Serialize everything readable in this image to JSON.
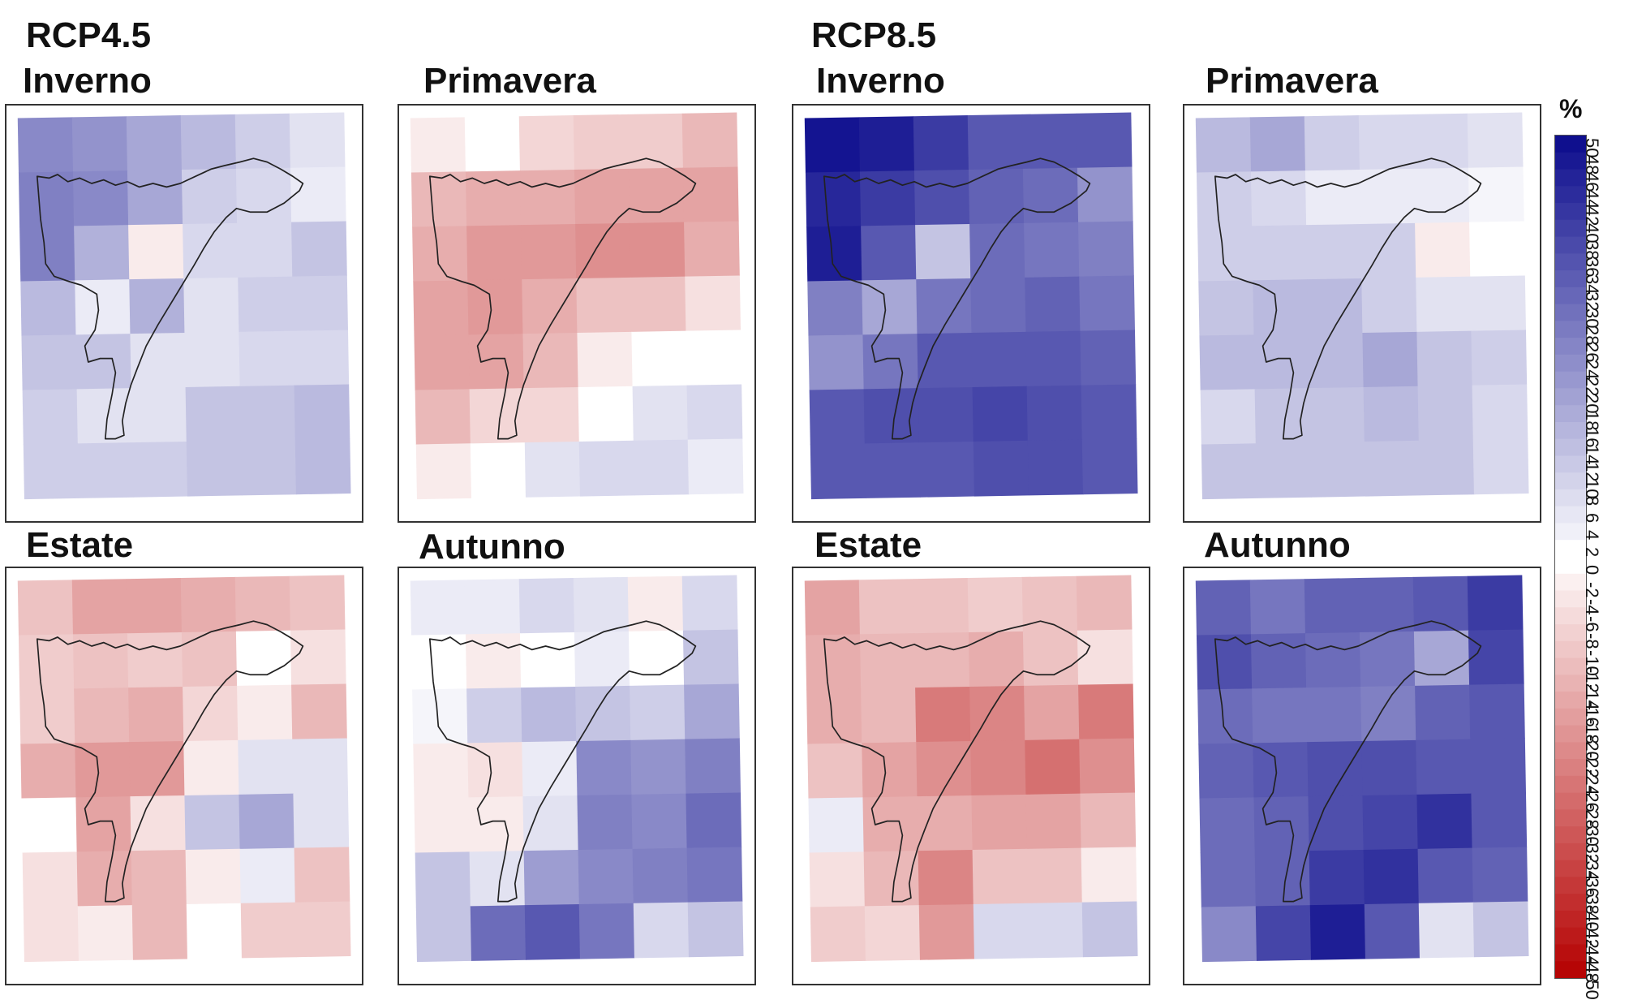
{
  "scenarios": [
    "RCP4.5",
    "RCP8.5"
  ],
  "seasons": [
    "Inverno",
    "Primavera",
    "Estate",
    "Autunno"
  ],
  "legend": {
    "unit": "%",
    "ticks": [
      "50",
      "48",
      "46",
      "44",
      "42",
      "40",
      "38",
      "36",
      "34",
      "32",
      "30",
      "28",
      "26",
      "24",
      "22",
      "20",
      "18",
      "16",
      "14",
      "12",
      "10",
      "8",
      "6",
      "4",
      "2",
      "0",
      "-2",
      "-4",
      "-6",
      "-8",
      "-10",
      "-12",
      "-14",
      "-16",
      "-18",
      "-20",
      "-22",
      "-24",
      "-26",
      "-28",
      "-30",
      "-32",
      "-34",
      "-36",
      "-38",
      "-40",
      "-42",
      "-44",
      "-48",
      "-50"
    ],
    "range": [
      -50,
      50
    ],
    "positive_color": "#0a0a8c",
    "negative_color": "#b40000",
    "neutral_color": "#ffffff"
  },
  "maps": [
    {
      "scenario": "RCP4.5",
      "season": "Inverno",
      "grid": [
        [
          24,
          22,
          18,
          14,
          10,
          6
        ],
        [
          26,
          24,
          18,
          10,
          8,
          4
        ],
        [
          26,
          16,
          -4,
          8,
          8,
          12
        ],
        [
          14,
          4,
          16,
          6,
          10,
          10
        ],
        [
          12,
          12,
          6,
          6,
          8,
          8
        ],
        [
          10,
          6,
          6,
          12,
          12,
          14
        ],
        [
          10,
          10,
          10,
          12,
          12,
          14
        ]
      ]
    },
    {
      "scenario": "RCP4.5",
      "season": "Primavera",
      "grid": [
        [
          -4,
          0,
          -8,
          -10,
          -10,
          -14
        ],
        [
          -14,
          -16,
          -16,
          -18,
          -18,
          -18
        ],
        [
          -16,
          -20,
          -20,
          -22,
          -22,
          -16
        ],
        [
          -18,
          -20,
          -16,
          -12,
          -12,
          -6
        ],
        [
          -18,
          -18,
          -14,
          -4,
          0,
          0
        ],
        [
          -14,
          -8,
          -8,
          0,
          6,
          8
        ],
        [
          -4,
          0,
          6,
          8,
          8,
          4
        ]
      ]
    },
    {
      "scenario": "RCP8.5",
      "season": "Inverno",
      "grid": [
        [
          48,
          46,
          40,
          34,
          34,
          34
        ],
        [
          44,
          40,
          36,
          32,
          30,
          22
        ],
        [
          46,
          34,
          12,
          30,
          28,
          26
        ],
        [
          26,
          18,
          28,
          30,
          32,
          28
        ],
        [
          22,
          28,
          34,
          34,
          34,
          32
        ],
        [
          34,
          36,
          36,
          38,
          36,
          34
        ],
        [
          34,
          34,
          34,
          36,
          36,
          34
        ]
      ]
    },
    {
      "scenario": "RCP8.5",
      "season": "Primavera",
      "grid": [
        [
          14,
          18,
          10,
          8,
          8,
          6
        ],
        [
          10,
          8,
          4,
          4,
          4,
          2
        ],
        [
          10,
          10,
          10,
          10,
          -4,
          0
        ],
        [
          12,
          14,
          14,
          10,
          6,
          6
        ],
        [
          14,
          14,
          14,
          18,
          12,
          10
        ],
        [
          8,
          12,
          12,
          14,
          12,
          8
        ],
        [
          12,
          12,
          12,
          12,
          12,
          8
        ]
      ]
    },
    {
      "scenario": "RCP4.5",
      "season": "Estate",
      "grid": [
        [
          -12,
          -18,
          -18,
          -16,
          -14,
          -12
        ],
        [
          -10,
          -12,
          -10,
          -12,
          0,
          -6
        ],
        [
          -10,
          -14,
          -16,
          -8,
          -4,
          -14
        ],
        [
          -16,
          -20,
          -20,
          -4,
          6,
          6
        ],
        [
          0,
          -18,
          -6,
          12,
          18,
          6
        ],
        [
          -6,
          -16,
          -14,
          -4,
          4,
          -12
        ],
        [
          -6,
          -4,
          -14,
          0,
          -10,
          -10
        ]
      ]
    },
    {
      "scenario": "RCP4.5",
      "season": "Autunno",
      "grid": [
        [
          4,
          4,
          8,
          6,
          -4,
          8
        ],
        [
          0,
          -4,
          0,
          4,
          0,
          12
        ],
        [
          2,
          10,
          14,
          12,
          10,
          18
        ],
        [
          -4,
          -6,
          4,
          24,
          22,
          26
        ],
        [
          -4,
          -4,
          6,
          26,
          24,
          30
        ],
        [
          12,
          6,
          20,
          24,
          26,
          28
        ],
        [
          12,
          30,
          34,
          28,
          8,
          12
        ]
      ]
    },
    {
      "scenario": "RCP8.5",
      "season": "Estate",
      "grid": [
        [
          -18,
          -12,
          -12,
          -10,
          -12,
          -14
        ],
        [
          -16,
          -14,
          -14,
          -16,
          -12,
          -6
        ],
        [
          -16,
          -14,
          -26,
          -24,
          -18,
          -26
        ],
        [
          -12,
          -18,
          -22,
          -24,
          -28,
          -22
        ],
        [
          4,
          -16,
          -16,
          -18,
          -18,
          -14
        ],
        [
          -6,
          -14,
          -24,
          -12,
          -12,
          -4
        ],
        [
          -10,
          -8,
          -20,
          8,
          8,
          12
        ]
      ]
    },
    {
      "scenario": "RCP8.5",
      "season": "Autunno",
      "grid": [
        [
          32,
          28,
          32,
          32,
          34,
          40
        ],
        [
          36,
          32,
          30,
          28,
          18,
          38
        ],
        [
          30,
          28,
          28,
          26,
          32,
          34
        ],
        [
          32,
          34,
          36,
          36,
          34,
          34
        ],
        [
          30,
          32,
          36,
          38,
          42,
          34
        ],
        [
          30,
          32,
          40,
          42,
          34,
          32
        ],
        [
          24,
          38,
          46,
          34,
          6,
          12
        ]
      ]
    }
  ]
}
